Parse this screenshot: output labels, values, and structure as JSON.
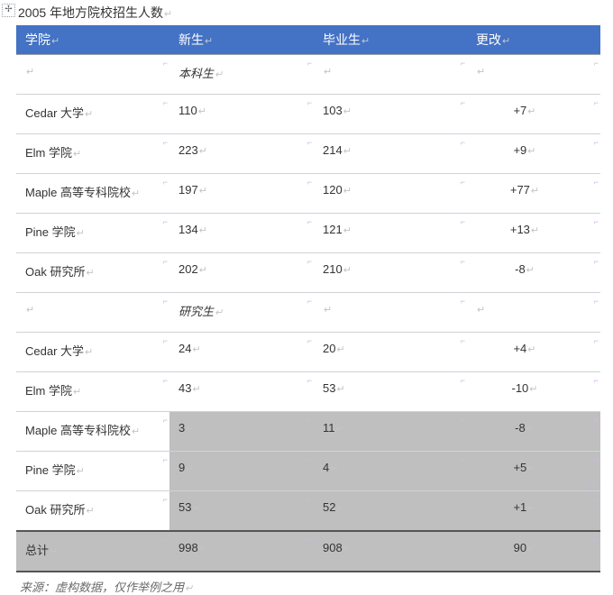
{
  "title": "2005 年地方院校招生人数",
  "para_mark": "↵",
  "cell_tick": "⌐",
  "move_glyph": "✢",
  "header": {
    "bg_color": "#4472c4",
    "fg_color": "#ffffff",
    "columns": [
      "学院",
      "新生",
      "毕业生",
      "更改"
    ]
  },
  "border_color": "#cfd2d6",
  "shaded_bg": "#bfbfbf",
  "sections": [
    {
      "label": "本科生",
      "rows": [
        {
          "name": "Cedar 大学",
          "fresh": "110",
          "grad": "103",
          "change": "+7",
          "shaded": false
        },
        {
          "name": "Elm 学院",
          "fresh": "223",
          "grad": "214",
          "change": "+9",
          "shaded": false
        },
        {
          "name": "Maple 高等专科院校",
          "fresh": "197",
          "grad": "120",
          "change": "+77",
          "shaded": false
        },
        {
          "name": "Pine 学院",
          "fresh": "134",
          "grad": "121",
          "change": "+13",
          "shaded": false
        },
        {
          "name": "Oak 研究所",
          "fresh": "202",
          "grad": "210",
          "change": "-8",
          "shaded": false
        }
      ]
    },
    {
      "label": "研究生",
      "rows": [
        {
          "name": "Cedar 大学",
          "fresh": "24",
          "grad": "20",
          "change": "+4",
          "shaded": false
        },
        {
          "name": "Elm 学院",
          "fresh": "43",
          "grad": "53",
          "change": "-10",
          "shaded": false
        },
        {
          "name": "Maple 高等专科院校",
          "fresh": "3",
          "grad": "11",
          "change": "-8",
          "shaded": true,
          "name_plain": true
        },
        {
          "name": "Pine 学院",
          "fresh": "9",
          "grad": "4",
          "change": "+5",
          "shaded": true,
          "name_plain": true
        },
        {
          "name": "Oak 研究所",
          "fresh": "53",
          "grad": "52",
          "change": "+1",
          "shaded": true,
          "name_plain": true
        }
      ]
    }
  ],
  "total": {
    "label": "总计",
    "fresh": "998",
    "grad": "908",
    "change": "90",
    "shaded": true
  },
  "footnote": "来源：虚构数据，仅作举例之用"
}
